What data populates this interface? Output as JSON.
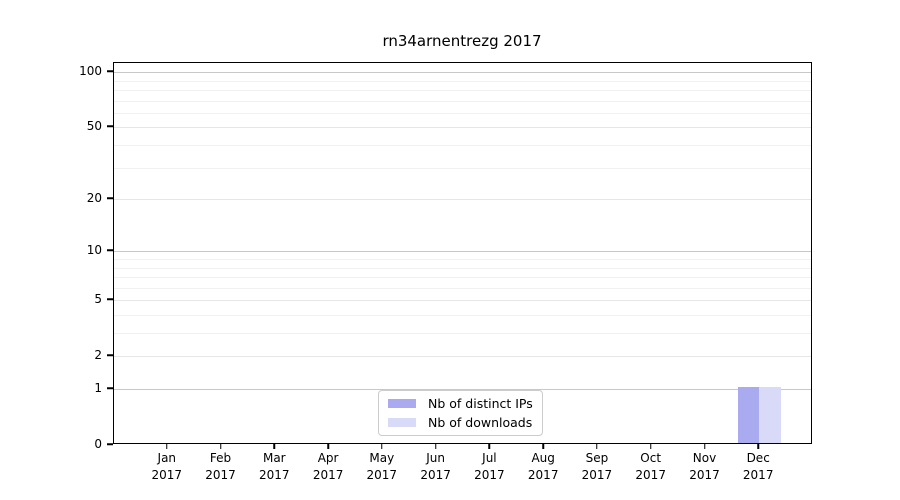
{
  "chart_data": {
    "type": "bar",
    "title": "rn34arnentrezg 2017",
    "categories": [
      {
        "month": "Jan",
        "year": "2017"
      },
      {
        "month": "Feb",
        "year": "2017"
      },
      {
        "month": "Mar",
        "year": "2017"
      },
      {
        "month": "Apr",
        "year": "2017"
      },
      {
        "month": "May",
        "year": "2017"
      },
      {
        "month": "Jun",
        "year": "2017"
      },
      {
        "month": "Jul",
        "year": "2017"
      },
      {
        "month": "Aug",
        "year": "2017"
      },
      {
        "month": "Sep",
        "year": "2017"
      },
      {
        "month": "Oct",
        "year": "2017"
      },
      {
        "month": "Nov",
        "year": "2017"
      },
      {
        "month": "Dec",
        "year": "2017"
      }
    ],
    "series": [
      {
        "key": "distinct-ips",
        "name": "Nb of distinct IPs",
        "color": "#aaaaf0",
        "values": [
          0,
          0,
          0,
          0,
          0,
          0,
          0,
          0,
          0,
          0,
          0,
          1
        ]
      },
      {
        "key": "downloads",
        "name": "Nb of downloads",
        "color": "#d9d9f8",
        "values": [
          0,
          0,
          0,
          0,
          0,
          0,
          0,
          0,
          0,
          0,
          0,
          1
        ]
      }
    ],
    "y_tick_values": [
      0,
      1,
      2,
      5,
      10,
      20,
      50,
      100
    ],
    "y_tick_labels": [
      "0",
      "1",
      "2",
      "5",
      "10",
      "20",
      "50",
      "100"
    ],
    "grid_minor_values": [
      3,
      4,
      6,
      7,
      8,
      9,
      30,
      40,
      60,
      70,
      80,
      90
    ],
    "y_scale": "log1p",
    "ylim": [
      0,
      112
    ],
    "grid": true,
    "legend_position": "bottom-center-inside",
    "axis_color": "#000000",
    "grid_major_color": "#c8c8c8",
    "grid_mid_color": "#e6e6e6",
    "grid_minor_color": "#f1f1f1"
  }
}
